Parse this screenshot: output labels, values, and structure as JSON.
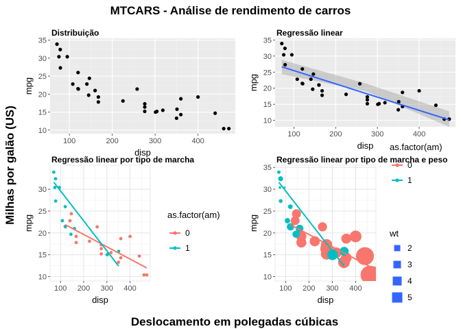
{
  "figure": {
    "title": "MTCARS - Análise de rendimento de carros",
    "xlabel": "Deslocamento em polegadas cúbicas",
    "ylabel": "Milhas por galão (US)"
  },
  "colors": {
    "panel_bg": "#ebebeb",
    "grid_major": "#ffffff",
    "grid_minor": "#f2f2f2",
    "panel_bw_bg": "#ffffff",
    "grid_bw": "#e6e6e6",
    "point": "#000000",
    "fit_line": "#3366ff",
    "ribbon": "#999999",
    "am0": "#f8766d",
    "am1": "#00bfc4",
    "wt_fill": "#3366ff"
  },
  "chart_data": [
    {
      "id": "p1",
      "type": "scatter",
      "title": "Distribuição",
      "xlabel": "disp",
      "ylabel": "mpg",
      "xlim": [
        55,
        487
      ],
      "ylim": [
        9,
        35.5
      ],
      "xticks": [
        100,
        200,
        300,
        400
      ],
      "yticks": [
        10,
        15,
        20,
        25,
        30,
        35
      ],
      "grid": true,
      "points": [
        [
          160,
          21.0
        ],
        [
          160,
          21.0
        ],
        [
          108,
          22.8
        ],
        [
          258,
          21.4
        ],
        [
          360,
          18.7
        ],
        [
          225,
          18.1
        ],
        [
          360,
          14.3
        ],
        [
          146.7,
          24.4
        ],
        [
          140.8,
          22.8
        ],
        [
          167.6,
          19.2
        ],
        [
          167.6,
          17.8
        ],
        [
          275.8,
          16.4
        ],
        [
          275.8,
          17.3
        ],
        [
          275.8,
          15.2
        ],
        [
          472,
          10.4
        ],
        [
          460,
          10.4
        ],
        [
          440,
          14.7
        ],
        [
          78.7,
          32.4
        ],
        [
          75.7,
          30.4
        ],
        [
          71.1,
          33.9
        ],
        [
          120.1,
          21.5
        ],
        [
          318,
          15.5
        ],
        [
          304,
          15.2
        ],
        [
          350,
          13.3
        ],
        [
          400,
          19.2
        ],
        [
          79,
          27.3
        ],
        [
          120.3,
          26.0
        ],
        [
          95.1,
          30.4
        ],
        [
          351,
          15.8
        ],
        [
          145,
          19.7
        ],
        [
          301,
          15.0
        ],
        [
          121,
          21.4
        ]
      ]
    },
    {
      "id": "p2",
      "type": "scatter",
      "title": "Regressão linear",
      "xlabel": "disp",
      "ylabel": "mpg",
      "xlim": [
        55,
        487
      ],
      "ylim": [
        8,
        35.5
      ],
      "xticks": [
        100,
        200,
        300,
        400
      ],
      "yticks": [
        10,
        15,
        20,
        25,
        30,
        35
      ],
      "grid": true,
      "fit": {
        "method": "lm",
        "intercept": 29.6,
        "slope": -0.0412,
        "x_range": [
          71.1,
          472
        ],
        "ribbon_start": [
          24.4,
          28.8
        ],
        "ribbon_mid": [
          19.1,
          21.5
        ],
        "ribbon_end": [
          8.0,
          12.8
        ]
      }
    },
    {
      "id": "p3",
      "type": "scatter",
      "title": "Regressão linear por tipo de marcha",
      "xlabel": "disp",
      "ylabel": "mpg",
      "xlim": [
        55,
        487
      ],
      "ylim": [
        9,
        35.5
      ],
      "xticks": [
        100,
        200,
        300,
        400
      ],
      "yticks": [
        10,
        15,
        20,
        25,
        30
      ],
      "grid": true,
      "legend": {
        "title": "as.factor(am)",
        "entries": [
          "0",
          "1"
        ],
        "position": "right"
      },
      "am": [
        1,
        1,
        1,
        0,
        0,
        0,
        0,
        0,
        0,
        0,
        0,
        0,
        0,
        0,
        0,
        0,
        0,
        1,
        1,
        1,
        0,
        0,
        0,
        0,
        0,
        1,
        1,
        1,
        1,
        1,
        1,
        1
      ],
      "fits": [
        {
          "group": "0",
          "x_range": [
            120.1,
            472
          ],
          "y_range": [
            21.9,
            12.0
          ]
        },
        {
          "group": "1",
          "x_range": [
            71.1,
            351
          ],
          "y_range": [
            31.6,
            12.4
          ]
        }
      ]
    },
    {
      "id": "p4",
      "type": "scatter",
      "title": "Regressão linear por tipo de marcha e peso",
      "xlabel": "disp",
      "ylabel": "mpg",
      "xlim": [
        55,
        487
      ],
      "ylim": [
        9,
        35.5
      ],
      "xticks": [
        100,
        200,
        300,
        400
      ],
      "yticks": [
        10,
        15,
        20,
        25,
        30,
        35
      ],
      "grid": true,
      "size_by": "wt",
      "wt": [
        2.62,
        2.875,
        2.32,
        3.215,
        3.44,
        3.46,
        3.57,
        3.19,
        3.15,
        3.44,
        3.44,
        4.07,
        3.73,
        3.78,
        5.25,
        5.424,
        5.345,
        2.2,
        1.615,
        1.835,
        2.465,
        3.52,
        3.435,
        3.84,
        3.845,
        1.935,
        2.14,
        1.513,
        3.17,
        2.77,
        3.57,
        2.78
      ],
      "legends": [
        {
          "title": "as.factor(am)",
          "entries": [
            "0",
            "1"
          ]
        },
        {
          "title": "wt",
          "entries": [
            "2",
            "3",
            "4",
            "5"
          ]
        }
      ]
    }
  ]
}
